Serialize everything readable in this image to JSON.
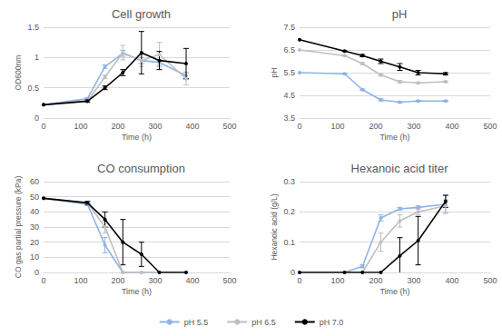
{
  "chart_data": [
    {
      "type": "line",
      "title": "Cell growth",
      "x_label": "Time (h)",
      "y_label": "OD600nm",
      "x": [
        0,
        118,
        165,
        213,
        263,
        311,
        383
      ],
      "series": [
        {
          "name": "pH 5.5",
          "color": "#8fb4e3",
          "marker": "circle",
          "line_style": "solid",
          "values": [
            0.22,
            0.32,
            0.85,
            1.07,
            0.95,
            0.92,
            0.7
          ],
          "errors": [
            0,
            0.02,
            0.03,
            0.05,
            0.05,
            0.05,
            0.06
          ]
        },
        {
          "name": "pH 6.5",
          "color": "#bfbfbf",
          "marker": "circle",
          "line_style": "solid",
          "values": [
            0.22,
            0.28,
            0.68,
            1.08,
            0.95,
            1.05,
            0.65
          ],
          "errors": [
            0,
            0.02,
            0.03,
            0.12,
            0.1,
            0.2,
            0.1
          ]
        },
        {
          "name": "pH 7.0",
          "color": "#000000",
          "marker": "circle",
          "line_style": "solid",
          "values": [
            0.22,
            0.28,
            0.5,
            0.75,
            1.08,
            0.95,
            0.9
          ],
          "errors": [
            0,
            0.02,
            0.03,
            0.05,
            0.35,
            0.15,
            0.25
          ]
        }
      ],
      "xlim": [
        0,
        500
      ],
      "xticks": [
        0,
        100,
        200,
        300,
        400,
        500
      ],
      "ylim": [
        0,
        1.5
      ],
      "yticks": [
        0,
        0.5,
        1,
        1.5
      ],
      "grid": true,
      "legend": "bottom"
    },
    {
      "type": "line",
      "title": "pH",
      "x_label": "Time (h)",
      "y_label": "pH",
      "x": [
        0,
        118,
        165,
        213,
        263,
        311,
        383
      ],
      "series": [
        {
          "name": "pH 5.5",
          "color": "#8fb4e3",
          "marker": "circle",
          "line_style": "solid",
          "values": [
            5.5,
            5.45,
            4.75,
            4.3,
            4.2,
            4.25,
            4.25
          ],
          "errors": [
            0,
            0.02,
            0.03,
            0.05,
            0.03,
            0.03,
            0.03
          ]
        },
        {
          "name": "pH 6.5",
          "color": "#bfbfbf",
          "marker": "circle",
          "line_style": "solid",
          "values": [
            6.5,
            6.25,
            5.9,
            5.4,
            5.1,
            5.05,
            5.1
          ],
          "errors": [
            0,
            0.02,
            0.05,
            0.05,
            0.05,
            0.03,
            0.03
          ]
        },
        {
          "name": "pH 7.0",
          "color": "#000000",
          "marker": "circle",
          "line_style": "solid",
          "values": [
            6.95,
            6.45,
            6.25,
            6.0,
            5.75,
            5.5,
            5.45
          ],
          "errors": [
            0,
            0.02,
            0.05,
            0.1,
            0.15,
            0.1,
            0.05
          ]
        }
      ],
      "xlim": [
        0,
        500
      ],
      "xticks": [
        0,
        100,
        200,
        300,
        400,
        500
      ],
      "ylim": [
        3.5,
        7.5
      ],
      "yticks": [
        3.5,
        4.5,
        5.5,
        6.5,
        7.5
      ],
      "grid": true,
      "legend": "bottom"
    },
    {
      "type": "line",
      "title": "CO consumption",
      "x_label": "Time (h)",
      "y_label": "CO gas partial pressure (kPa)",
      "x": [
        0,
        118,
        165,
        213,
        263,
        311,
        383
      ],
      "series": [
        {
          "name": "pH 5.5",
          "color": "#8fb4e3",
          "marker": "circle",
          "line_style": "solid",
          "values": [
            49,
            45,
            18,
            0,
            0,
            0,
            0
          ],
          "errors": [
            0,
            1,
            5,
            0,
            0,
            0,
            0
          ]
        },
        {
          "name": "pH 6.5",
          "color": "#bfbfbf",
          "marker": "circle",
          "line_style": "solid",
          "values": [
            49,
            46,
            30,
            0,
            0,
            0,
            0
          ],
          "errors": [
            0,
            1,
            4,
            0,
            0,
            0,
            0
          ]
        },
        {
          "name": "pH 7.0",
          "color": "#000000",
          "marker": "circle",
          "line_style": "solid",
          "values": [
            49,
            46,
            35,
            20,
            12,
            0,
            0
          ],
          "errors": [
            0,
            1,
            5,
            15,
            8,
            0,
            0
          ]
        }
      ],
      "xlim": [
        0,
        500
      ],
      "xticks": [
        0,
        100,
        200,
        300,
        400,
        500
      ],
      "ylim": [
        0,
        60
      ],
      "yticks": [
        0,
        10,
        20,
        30,
        40,
        50,
        60
      ],
      "grid": true,
      "legend": "bottom"
    },
    {
      "type": "line",
      "title": "Hexanoic acid titer",
      "x_label": "Time (h)",
      "y_label": "Hexanoic acid (g/L)",
      "x": [
        0,
        118,
        165,
        213,
        263,
        311,
        383
      ],
      "series": [
        {
          "name": "pH 5.5",
          "color": "#8fb4e3",
          "marker": "circle",
          "line_style": "solid",
          "values": [
            0,
            0,
            0.02,
            0.18,
            0.21,
            0.215,
            0.225
          ],
          "errors": [
            0,
            0,
            0.005,
            0.01,
            0.005,
            0.005,
            0.03
          ]
        },
        {
          "name": "pH 6.5",
          "color": "#bfbfbf",
          "marker": "circle",
          "line_style": "solid",
          "values": [
            0,
            0,
            0,
            0.1,
            0.17,
            0.2,
            0.22
          ],
          "errors": [
            0,
            0,
            0,
            0.03,
            0.02,
            0.01,
            0.02
          ]
        },
        {
          "name": "pH 7.0",
          "color": "#000000",
          "marker": "circle",
          "line_style": "solid",
          "values": [
            0,
            0,
            0,
            0,
            0.055,
            0.105,
            0.235
          ],
          "errors": [
            0,
            0,
            0,
            0,
            0.06,
            0.08,
            0.02
          ]
        }
      ],
      "xlim": [
        0,
        500
      ],
      "xticks": [
        0,
        100,
        200,
        300,
        400,
        500
      ],
      "ylim": [
        0,
        0.3
      ],
      "yticks": [
        0,
        0.1,
        0.2,
        0.3
      ],
      "grid": true,
      "legend": "bottom"
    }
  ]
}
